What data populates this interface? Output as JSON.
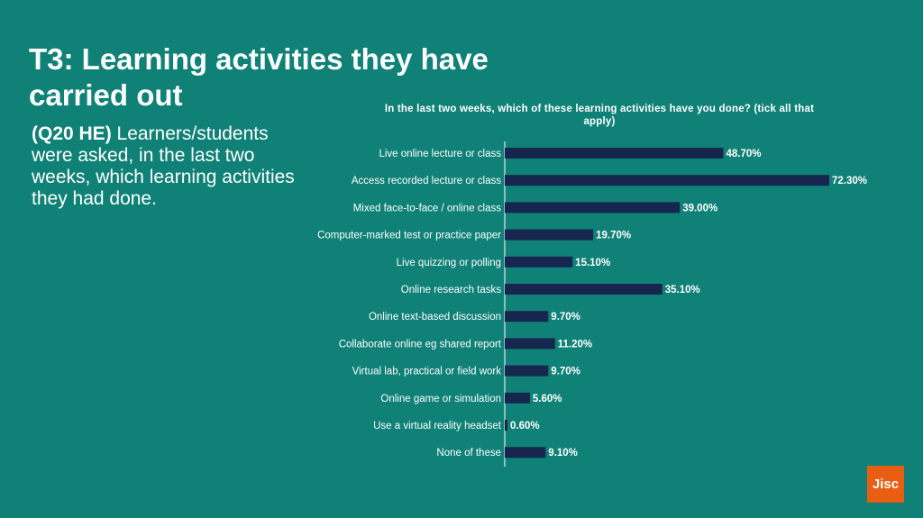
{
  "slide": {
    "title": "T3: Learning activities they have carried out",
    "intro_bold": "(Q20 HE)",
    "intro_text": " Learners/students were asked, in the last two weeks, which learning activities they had done.",
    "logo_text": "Jisc"
  },
  "colors": {
    "background": "#0f8177",
    "bar": "#16264f",
    "axis": "#ffffff",
    "logo": "#e85e13"
  },
  "chart_data": {
    "type": "bar",
    "orientation": "horizontal",
    "title": "In the last two weeks, which of these learning activities have you done? (tick all that apply)",
    "categories": [
      "Live online lecture or class",
      "Access recorded lecture or class",
      "Mixed face-to-face / online class",
      "Computer-marked test or practice paper",
      "Live quizzing or polling",
      "Online research tasks",
      "Online text-based discussion",
      "Collaborate online eg shared report",
      "Virtual lab, practical or field work",
      "Online game or simulation",
      "Use a virtual reality headset",
      "None of these"
    ],
    "values": [
      48.7,
      72.3,
      39.0,
      19.7,
      15.1,
      35.1,
      9.7,
      11.2,
      9.7,
      5.6,
      0.6,
      9.1
    ],
    "value_labels": [
      "48.70%",
      "72.30%",
      "39.00%",
      "19.70%",
      "15.10%",
      "35.10%",
      "9.70%",
      "11.20%",
      "9.70%",
      "5.60%",
      "0.60%",
      "9.10%"
    ],
    "xlim": [
      0,
      100
    ],
    "grid": false,
    "legend": "none"
  }
}
